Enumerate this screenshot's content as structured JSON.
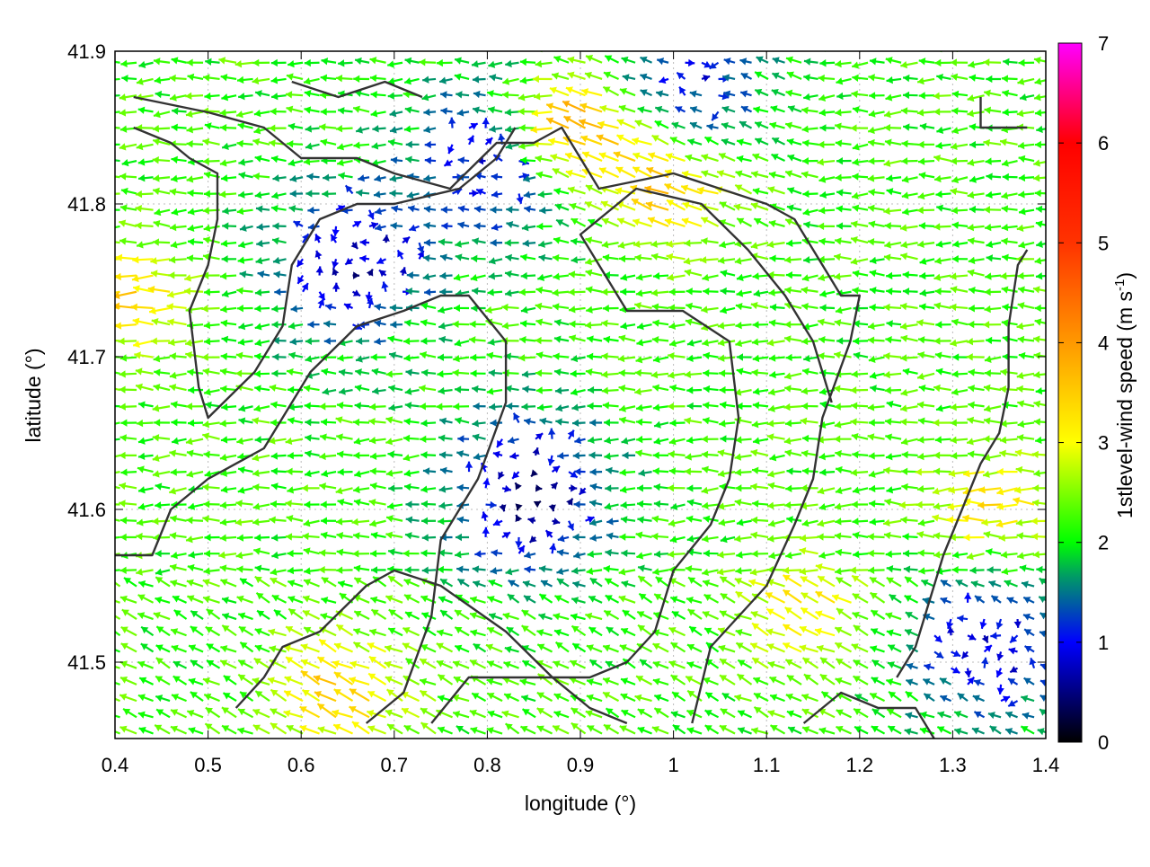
{
  "chart_data": {
    "type": "vector-field",
    "xlabel": "longitude (°)",
    "ylabel": "latitude (°)",
    "xlim": [
      0.4,
      1.4
    ],
    "ylim": [
      41.45,
      41.9
    ],
    "xticks": [
      "0.4",
      "0.5",
      "0.6",
      "0.7",
      "0.8",
      "0.9",
      "1",
      "1.1",
      "1.2",
      "1.3",
      "1.4"
    ],
    "yticks": [
      "41.5",
      "41.6",
      "41.7",
      "41.8",
      "41.9"
    ],
    "grid": true,
    "colorbar": {
      "label_main": "1stlevel-wind speed (m s",
      "label_sup": "-1",
      "label_end": ")",
      "range": [
        0,
        7
      ],
      "ticks": [
        "0",
        "1",
        "2",
        "3",
        "4",
        "5",
        "6",
        "7"
      ],
      "colors": [
        "#000000",
        "#0000ff",
        "#00a060",
        "#00ff00",
        "#ffff00",
        "#ff9900",
        "#ff0000",
        "#ff00ff"
      ]
    },
    "field": {
      "dominant_direction": "westward",
      "low_speed_regions": [
        {
          "lon": 0.66,
          "lat": 41.76,
          "speed": 0.7
        },
        {
          "lon": 0.85,
          "lat": 41.61,
          "speed": 0.5
        },
        {
          "lon": 0.82,
          "lat": 41.83,
          "speed": 0.8
        },
        {
          "lon": 1.34,
          "lat": 41.51,
          "speed": 0.8
        },
        {
          "lon": 1.02,
          "lat": 41.88,
          "speed": 1.0
        }
      ],
      "high_speed_regions": [
        {
          "lon": 1.0,
          "lat": 41.81,
          "speed": 3.8
        },
        {
          "lon": 0.9,
          "lat": 41.85,
          "speed": 4.6
        },
        {
          "lon": 0.42,
          "lat": 41.74,
          "speed": 3.5
        },
        {
          "lon": 0.65,
          "lat": 41.48,
          "speed": 3.6
        },
        {
          "lon": 1.15,
          "lat": 41.53,
          "speed": 3.3
        },
        {
          "lon": 1.35,
          "lat": 41.6,
          "speed": 3.4
        }
      ],
      "background_speed": 2.2
    },
    "contours": [
      [
        [
          0.42,
          41.87
        ],
        [
          0.5,
          41.86
        ],
        [
          0.56,
          41.85
        ],
        [
          0.58,
          41.84
        ],
        [
          0.6,
          41.83
        ],
        [
          0.66,
          41.83
        ],
        [
          0.7,
          41.82
        ],
        [
          0.76,
          41.81
        ],
        [
          0.81,
          41.84
        ],
        [
          0.85,
          41.84
        ],
        [
          0.88,
          41.85
        ],
        [
          0.92,
          41.81
        ],
        [
          1.0,
          41.82
        ],
        [
          1.05,
          41.81
        ],
        [
          1.1,
          41.8
        ],
        [
          1.13,
          41.79
        ],
        [
          1.16,
          41.76
        ],
        [
          1.18,
          41.74
        ],
        [
          1.2,
          41.74
        ],
        [
          1.19,
          41.71
        ],
        [
          1.16,
          41.66
        ],
        [
          1.15,
          41.62
        ],
        [
          1.13,
          41.59
        ],
        [
          1.1,
          41.55
        ],
        [
          1.04,
          41.51
        ],
        [
          1.02,
          41.46
        ]
      ],
      [
        [
          0.42,
          41.85
        ],
        [
          0.46,
          41.84
        ],
        [
          0.48,
          41.83
        ],
        [
          0.51,
          41.82
        ],
        [
          0.51,
          41.79
        ],
        [
          0.5,
          41.76
        ],
        [
          0.48,
          41.73
        ],
        [
          0.49,
          41.68
        ],
        [
          0.5,
          41.66
        ],
        [
          0.55,
          41.69
        ],
        [
          0.58,
          41.72
        ],
        [
          0.59,
          41.76
        ],
        [
          0.62,
          41.79
        ],
        [
          0.66,
          41.8
        ],
        [
          0.7,
          41.8
        ],
        [
          0.77,
          41.81
        ],
        [
          0.81,
          41.83
        ],
        [
          0.83,
          41.85
        ]
      ],
      [
        [
          0.4,
          41.57
        ],
        [
          0.44,
          41.57
        ],
        [
          0.46,
          41.6
        ],
        [
          0.5,
          41.62
        ],
        [
          0.56,
          41.64
        ],
        [
          0.61,
          41.69
        ],
        [
          0.66,
          41.72
        ],
        [
          0.71,
          41.73
        ],
        [
          0.75,
          41.74
        ],
        [
          0.78,
          41.74
        ],
        [
          0.82,
          41.71
        ],
        [
          0.82,
          41.67
        ],
        [
          0.79,
          41.62
        ],
        [
          0.75,
          41.58
        ],
        [
          0.74,
          41.53
        ],
        [
          0.71,
          41.48
        ],
        [
          0.67,
          41.46
        ]
      ],
      [
        [
          0.53,
          41.47
        ],
        [
          0.56,
          41.49
        ],
        [
          0.58,
          41.51
        ],
        [
          0.62,
          41.52
        ],
        [
          0.67,
          41.55
        ],
        [
          0.7,
          41.56
        ],
        [
          0.75,
          41.55
        ],
        [
          0.82,
          41.52
        ],
        [
          0.87,
          41.49
        ],
        [
          0.91,
          41.47
        ],
        [
          0.95,
          41.46
        ]
      ],
      [
        [
          0.74,
          41.46
        ],
        [
          0.78,
          41.49
        ],
        [
          0.83,
          41.49
        ],
        [
          0.86,
          41.49
        ],
        [
          0.91,
          41.49
        ],
        [
          0.95,
          41.5
        ],
        [
          0.98,
          41.52
        ],
        [
          1.0,
          41.56
        ],
        [
          1.04,
          41.59
        ],
        [
          1.06,
          41.62
        ],
        [
          1.07,
          41.66
        ],
        [
          1.06,
          41.71
        ],
        [
          1.01,
          41.73
        ],
        [
          0.95,
          41.73
        ],
        [
          0.9,
          41.78
        ],
        [
          0.96,
          41.81
        ],
        [
          1.03,
          41.8
        ],
        [
          1.08,
          41.77
        ],
        [
          1.12,
          41.74
        ],
        [
          1.15,
          41.71
        ],
        [
          1.17,
          41.67
        ]
      ],
      [
        [
          1.14,
          41.46
        ],
        [
          1.18,
          41.48
        ],
        [
          1.22,
          41.47
        ],
        [
          1.26,
          41.47
        ],
        [
          1.28,
          41.45
        ]
      ],
      [
        [
          1.24,
          41.49
        ],
        [
          1.26,
          41.51
        ],
        [
          1.27,
          41.53
        ],
        [
          1.29,
          41.57
        ],
        [
          1.31,
          41.6
        ],
        [
          1.33,
          41.63
        ],
        [
          1.35,
          41.65
        ],
        [
          1.36,
          41.68
        ],
        [
          1.36,
          41.72
        ],
        [
          1.37,
          41.76
        ],
        [
          1.38,
          41.77
        ]
      ],
      [
        [
          1.33,
          41.87
        ],
        [
          1.33,
          41.85
        ],
        [
          1.36,
          41.85
        ],
        [
          1.38,
          41.85
        ]
      ],
      [
        [
          0.59,
          41.88
        ],
        [
          0.64,
          41.87
        ],
        [
          0.69,
          41.88
        ],
        [
          0.73,
          41.87
        ]
      ]
    ]
  }
}
